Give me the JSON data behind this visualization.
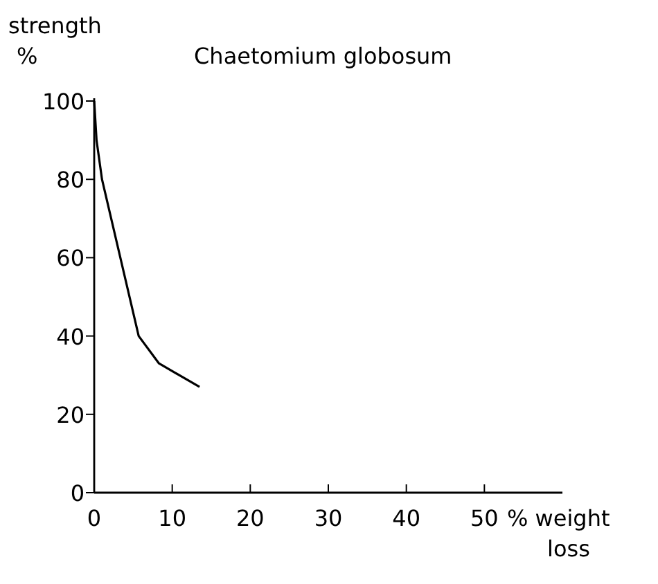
{
  "chart_data": {
    "type": "line",
    "title": "Chaetomium globosum",
    "ylabel": "strength %",
    "xlabel": "% weight loss",
    "series": [
      {
        "color": "#000000",
        "x": [
          0,
          0.3,
          1,
          5.7,
          8.3,
          13.5
        ],
        "values": [
          100,
          90,
          80,
          40,
          33,
          27
        ]
      }
    ],
    "xlim": [
      0,
      60
    ],
    "ylim": [
      0,
      100
    ],
    "xticks": [
      0,
      10,
      20,
      30,
      40,
      50
    ],
    "yticks": [
      0,
      20,
      40,
      60,
      80,
      100
    ],
    "grid": false,
    "marker": "none",
    "line_style": "solid"
  }
}
